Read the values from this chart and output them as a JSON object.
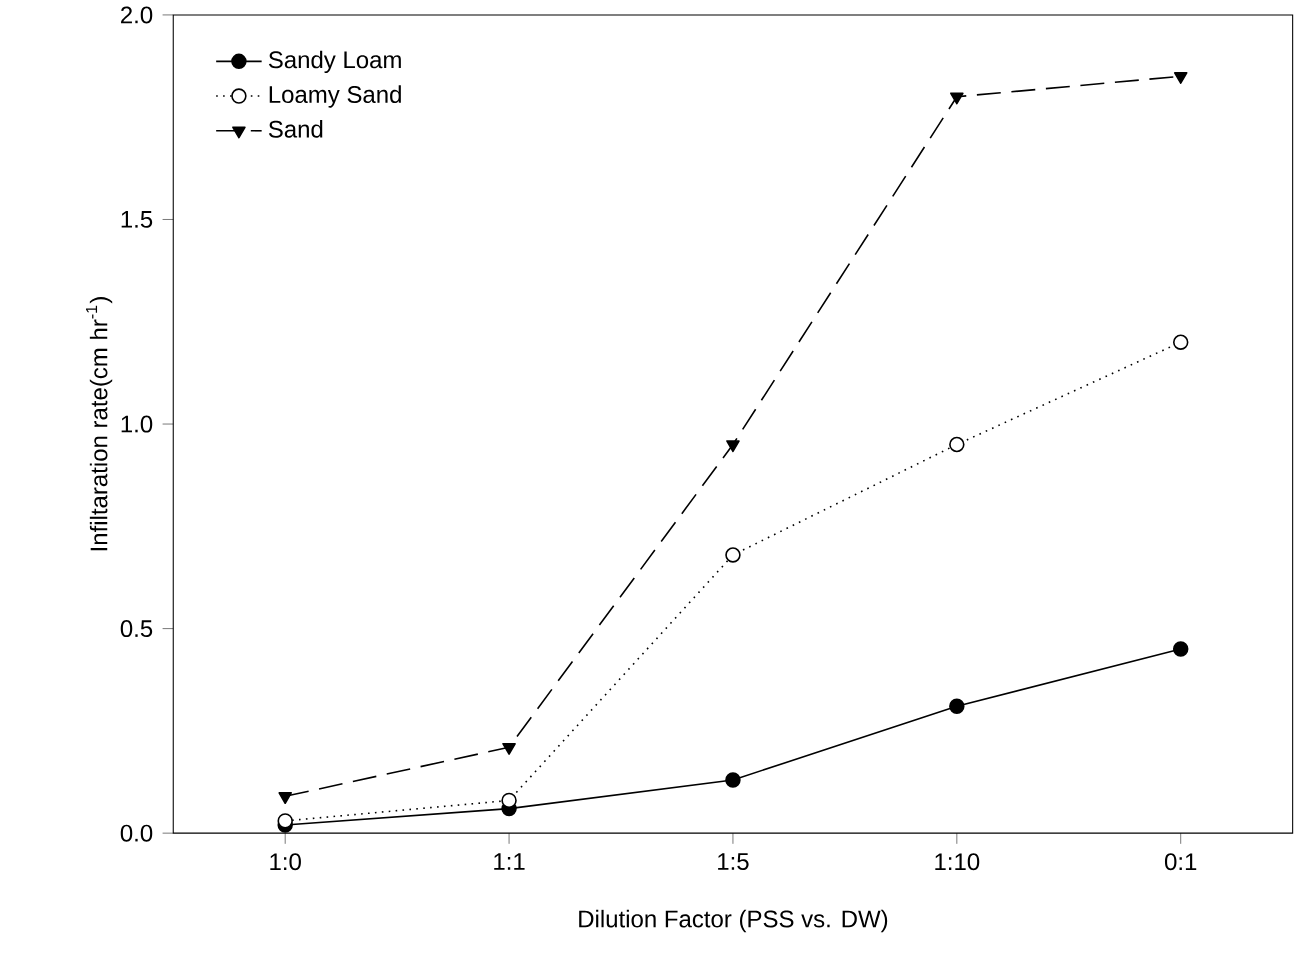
{
  "chart_data": {
    "type": "line",
    "xlabel": "Dilution Factor (PSS vs. DW)",
    "ylabel": "Infiltaration rate(cm hr$^{-1}$)",
    "categories": [
      "1:0",
      "1:1",
      "1:5",
      "1:10",
      "0:1"
    ],
    "series": [
      {
        "name": "Sandy Loam",
        "color": "#000000",
        "marker": "circle",
        "line_style": "solid",
        "values": [
          0.02,
          0.06,
          0.13,
          0.31,
          0.45
        ]
      },
      {
        "name": "Loamy Sand",
        "color": "#000000",
        "marker": "circle_open",
        "line_style": "dotted",
        "values": [
          0.03,
          0.08,
          0.68,
          0.95,
          1.2
        ]
      },
      {
        "name": "Sand",
        "color": "#000000",
        "marker": "triangle_down",
        "line_style": "dashed",
        "values": [
          0.09,
          0.21,
          0.95,
          1.8,
          1.85
        ]
      }
    ],
    "ylim": [
      0,
      2
    ],
    "yticks": [
      {
        "value": 0,
        "label": "0.0"
      },
      {
        "value": 0.5,
        "label": "0.5"
      },
      {
        "value": 1,
        "label": "1.0"
      },
      {
        "value": 1.5,
        "label": "1.5"
      },
      {
        "value": 2,
        "label": "2.0"
      }
    ],
    "legend": "top left",
    "grid": false
  }
}
